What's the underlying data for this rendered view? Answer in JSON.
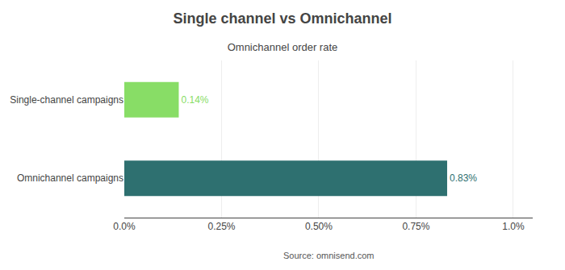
{
  "chart_data": {
    "type": "bar",
    "orientation": "horizontal",
    "title": "Single channel vs Omnichannel",
    "subtitle": "Omnichannel order rate",
    "annotations": [
      "Source: omnisend.com"
    ],
    "categories": [
      "Single-channel campaigns",
      "Omnichannel campaigns"
    ],
    "values": [
      0.14,
      0.83
    ],
    "value_labels": [
      "0.14%",
      "0.83%"
    ],
    "data_labels": true,
    "colors": [
      "#88dd66",
      "#2e7070"
    ],
    "xlim": [
      0,
      1.05
    ],
    "xticks": [
      {
        "value": 0.0,
        "label": "0.0%"
      },
      {
        "value": 0.25,
        "label": "0.25%"
      },
      {
        "value": 0.5,
        "label": "0.50%"
      },
      {
        "value": 0.75,
        "label": "0.75%"
      },
      {
        "value": 1.0,
        "label": "1.0%"
      }
    ],
    "grid": true
  }
}
